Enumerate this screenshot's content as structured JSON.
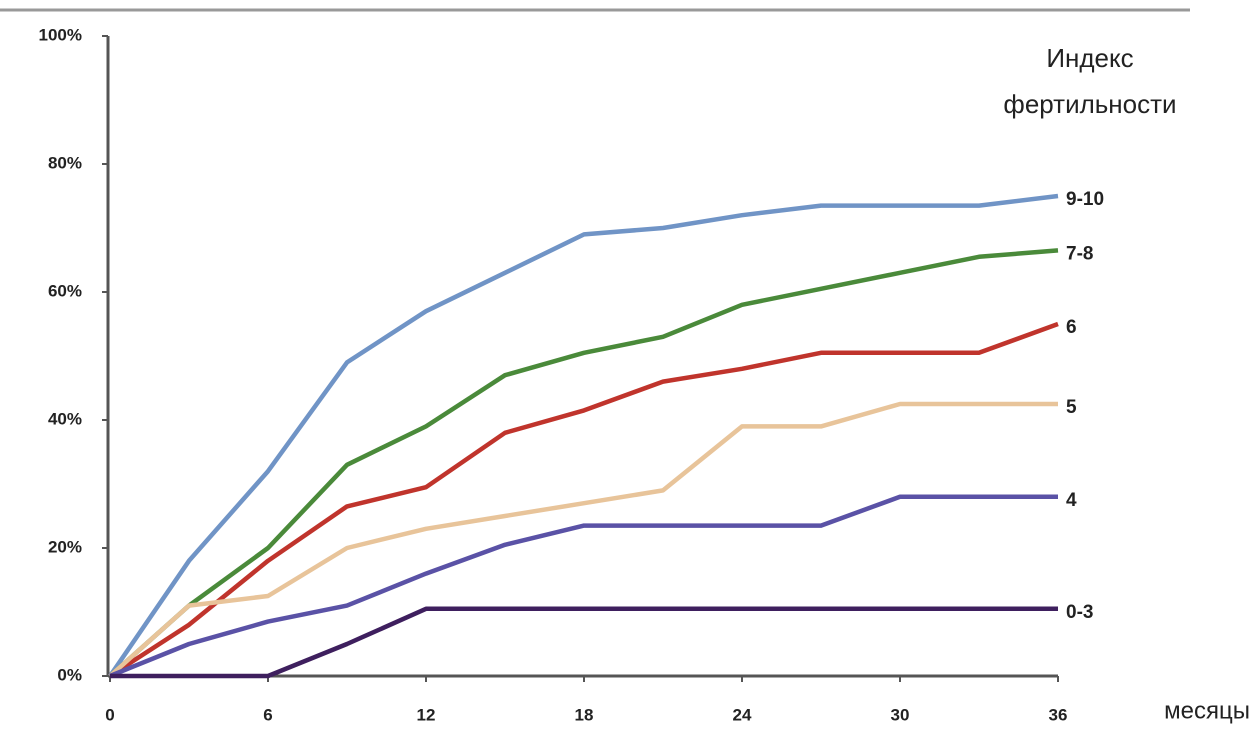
{
  "chart_data": {
    "type": "line",
    "legend_title": "Индекс фертильности",
    "xlabel": "месяцы",
    "x": [
      0,
      3,
      6,
      9,
      12,
      15,
      18,
      21,
      24,
      27,
      30,
      33,
      36
    ],
    "series": [
      {
        "name": "9-10",
        "color": "#7094c6",
        "values": [
          0,
          18,
          32,
          49,
          57,
          63,
          69,
          70,
          72,
          73.5,
          73.5,
          73.5,
          75
        ]
      },
      {
        "name": "7-8",
        "color": "#4a8a3a",
        "values": [
          0,
          11,
          20,
          33,
          39,
          47,
          50.5,
          53,
          58,
          60.5,
          63,
          65.5,
          66.5
        ]
      },
      {
        "name": "6",
        "color": "#c0342c",
        "values": [
          0,
          8,
          18,
          26.5,
          29.5,
          38,
          41.5,
          46,
          48,
          50.5,
          50.5,
          50.5,
          55
        ]
      },
      {
        "name": "5",
        "color": "#e8c49a",
        "values": [
          0,
          11,
          12.5,
          20,
          23,
          25,
          27,
          29,
          39,
          39,
          42.5,
          42.5,
          42.5
        ]
      },
      {
        "name": "4",
        "color": "#5a52a6",
        "values": [
          0,
          5,
          8.5,
          11,
          16,
          20.5,
          23.5,
          23.5,
          23.5,
          23.5,
          28,
          28,
          28
        ]
      },
      {
        "name": "0-3",
        "color": "#3e1f5e",
        "values": [
          0,
          0,
          0,
          5,
          10.5,
          10.5,
          10.5,
          10.5,
          10.5,
          10.5,
          10.5,
          10.5,
          10.5
        ]
      }
    ],
    "xlim": [
      0,
      36
    ],
    "xticks": [
      0,
      6,
      12,
      18,
      24,
      30,
      36
    ],
    "ylim": [
      0,
      100
    ],
    "yticks": [
      {
        "value": 0,
        "label": "0%"
      },
      {
        "value": 20,
        "label": "20%"
      },
      {
        "value": 40,
        "label": "40%"
      },
      {
        "value": 60,
        "label": "60%"
      },
      {
        "value": 80,
        "label": "80%"
      },
      {
        "value": 100,
        "label": "100%"
      }
    ],
    "grid": false
  }
}
